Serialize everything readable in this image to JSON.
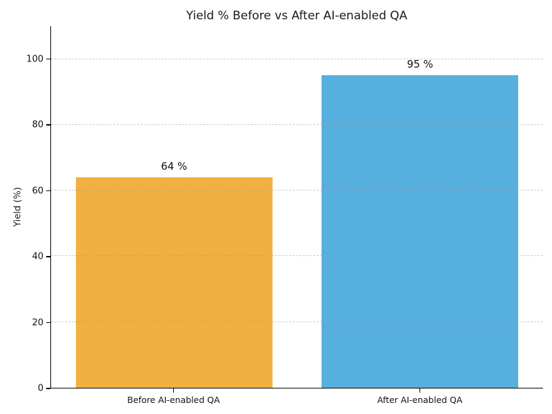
{
  "chart_data": {
    "type": "bar",
    "title": "Yield % Before vs After AI-enabled QA",
    "categories": [
      "Before AI-enabled QA",
      "After AI-enabled QA"
    ],
    "values": [
      64,
      95
    ],
    "bar_labels": [
      "64 %",
      "95 %"
    ],
    "bar_colors": [
      "#f0b142",
      "#57afdf"
    ],
    "xlabel": "",
    "ylabel": "Yield (%)",
    "ylim": [
      0,
      110
    ],
    "yticks": [
      0,
      20,
      40,
      60,
      80,
      100
    ],
    "grid": "horizontal-dashed",
    "legend": "none"
  }
}
